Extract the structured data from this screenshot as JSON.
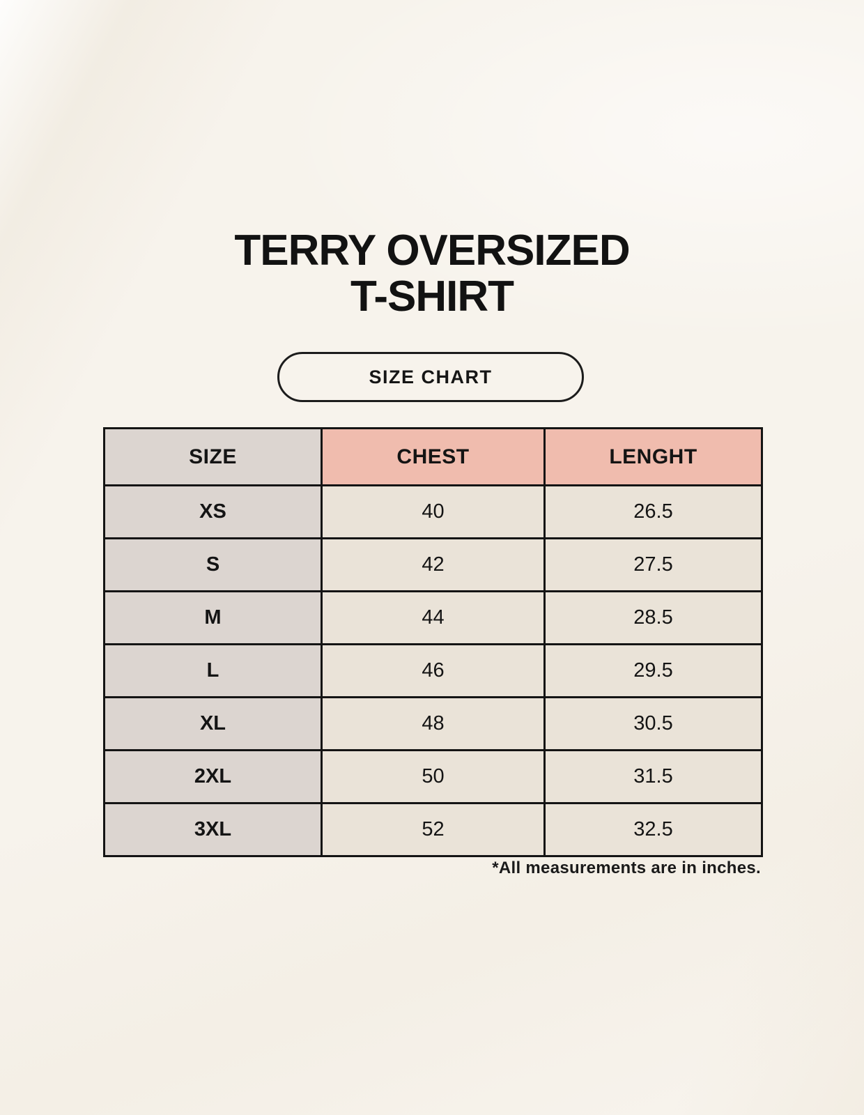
{
  "title": {
    "line1": "TERRY OVERSIZED",
    "line2": "T-SHIRT"
  },
  "size_chart_button": {
    "label": "SIZE CHART"
  },
  "chart_data": {
    "type": "table",
    "title": "TERRY OVERSIZED T-SHIRT",
    "subtitle": "SIZE CHART",
    "columns": [
      "SIZE",
      "CHEST",
      "LENGHT"
    ],
    "rows": [
      {
        "size": "XS",
        "chest": 40,
        "lenght": 26.5
      },
      {
        "size": "S",
        "chest": 42,
        "lenght": 27.5
      },
      {
        "size": "M",
        "chest": 44,
        "lenght": 28.5
      },
      {
        "size": "L",
        "chest": 46,
        "lenght": 29.5
      },
      {
        "size": "XL",
        "chest": 48,
        "lenght": 30.5
      },
      {
        "size": "2XL",
        "chest": 50,
        "lenght": 31.5
      },
      {
        "size": "3XL",
        "chest": 52,
        "lenght": 32.5
      }
    ],
    "units_note": "*All measurements are in inches."
  },
  "colors": {
    "background": "#f7f3ec",
    "header_pink": "#f0bcae",
    "size_column_gray": "#dcd5d0",
    "data_cell_beige": "#eae3d8",
    "table_border": "#141414",
    "text": "#141414"
  }
}
